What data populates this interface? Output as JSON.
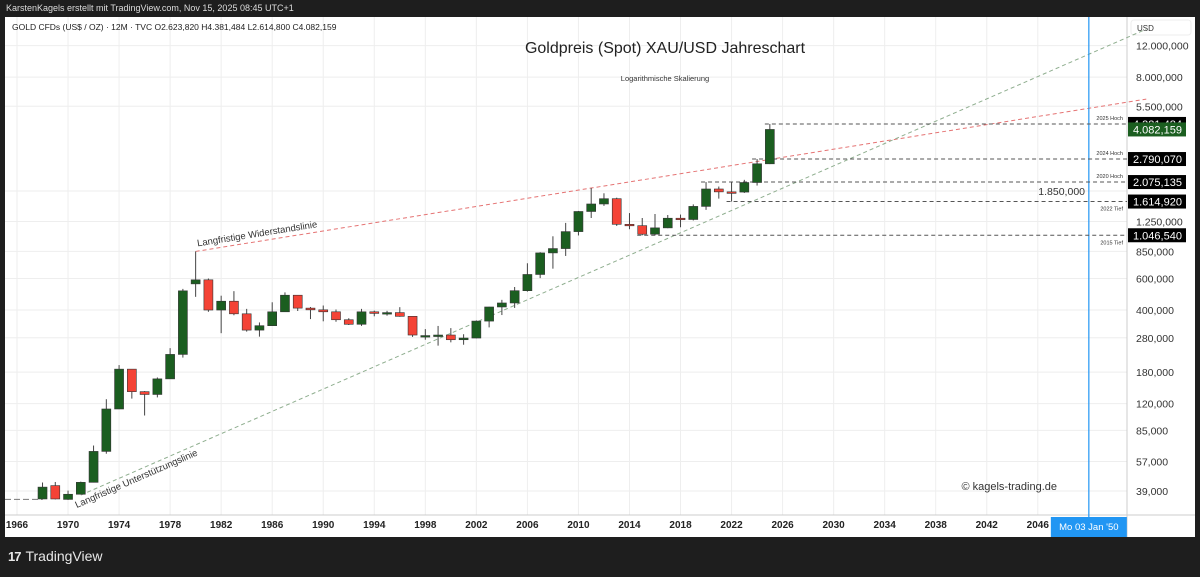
{
  "header": {
    "credit": "KarstenKagels erstellt mit TradingView.com, Nov 15, 2025 08:45 UTC+1"
  },
  "legend": {
    "symbol": "GOLD CFDs (US$ / OZ) · 12M · TVC",
    "open": "O2.623,820",
    "high": "H4.381,484",
    "low": "L2.614,800",
    "close": "C4.082,159"
  },
  "footer": {
    "brand": "TradingView"
  },
  "colors": {
    "up": "#1b5e20",
    "down": "#f44336",
    "resistance": "#e57373",
    "support": "#8fae8f",
    "crosshair": "#2196f3"
  },
  "chart_data": {
    "type": "candlestick",
    "title": "Goldpreis (Spot) XAU/USD Jahreschart",
    "subtitle": "Logarithmische Skalierung",
    "watermark": "© kagels-trading.de",
    "currency": "USD",
    "y_scale": "log",
    "ylim": [
      33,
      13500
    ],
    "xlim": [
      1965.7,
      2054.5
    ],
    "grid": true,
    "x_ticks": [
      "1966",
      "1970",
      "1974",
      "1978",
      "1982",
      "1986",
      "1990",
      "1994",
      "1998",
      "2002",
      "2006",
      "2010",
      "2014",
      "2018",
      "2022",
      "2026",
      "2030",
      "2034",
      "2038",
      "2042",
      "2046"
    ],
    "x_tick_values": [
      1966,
      1970,
      1974,
      1978,
      1982,
      1986,
      1990,
      1994,
      1998,
      2002,
      2006,
      2010,
      2014,
      2018,
      2022,
      2026,
      2030,
      2034,
      2038,
      2042,
      2046
    ],
    "y_ticks": [
      {
        "v": 12000,
        "label": "12.000,000"
      },
      {
        "v": 8000,
        "label": "8.000,000"
      },
      {
        "v": 5500,
        "label": "5.500,000"
      },
      {
        "v": 1850,
        "label": "1.850,000"
      },
      {
        "v": 1250,
        "label": "1.250,000"
      },
      {
        "v": 850,
        "label": "850,000"
      },
      {
        "v": 600,
        "label": "600,000"
      },
      {
        "v": 400,
        "label": "400,000"
      },
      {
        "v": 280,
        "label": "280,000"
      },
      {
        "v": 180,
        "label": "180,000"
      },
      {
        "v": 120,
        "label": "120,000"
      },
      {
        "v": 85,
        "label": "85,000"
      },
      {
        "v": 57,
        "label": "57,000"
      },
      {
        "v": 39,
        "label": "39,000"
      }
    ],
    "candles": [
      [
        1968,
        35.2,
        43.5,
        35.0,
        41.0
      ],
      [
        1969,
        41.8,
        43.8,
        35.0,
        35.2
      ],
      [
        1970,
        35.0,
        39.2,
        34.8,
        37.4
      ],
      [
        1971,
        37.4,
        44.0,
        37.3,
        43.6
      ],
      [
        1972,
        43.6,
        70.0,
        43.5,
        64.9
      ],
      [
        1973,
        64.9,
        127,
        63,
        112
      ],
      [
        1974,
        112,
        197,
        112,
        187
      ],
      [
        1975,
        187,
        186,
        128,
        140
      ],
      [
        1976,
        140,
        141,
        103,
        135
      ],
      [
        1977,
        135,
        168,
        130,
        165
      ],
      [
        1978,
        165,
        245,
        165,
        226
      ],
      [
        1979,
        226,
        525,
        217,
        512
      ],
      [
        1980,
        560,
        850,
        474,
        590
      ],
      [
        1981,
        590,
        600,
        391,
        400
      ],
      [
        1982,
        400,
        481,
        297,
        448
      ],
      [
        1983,
        448,
        510,
        374,
        381
      ],
      [
        1984,
        381,
        406,
        303,
        309
      ],
      [
        1985,
        309,
        341,
        284,
        327
      ],
      [
        1986,
        327,
        442,
        326,
        391
      ],
      [
        1987,
        391,
        502,
        390,
        484
      ],
      [
        1988,
        484,
        485,
        395,
        410
      ],
      [
        1989,
        410,
        416,
        356,
        401
      ],
      [
        1990,
        401,
        424,
        346,
        391
      ],
      [
        1991,
        391,
        403,
        344,
        353
      ],
      [
        1992,
        353,
        360,
        330,
        333
      ],
      [
        1993,
        333,
        406,
        326,
        391
      ],
      [
        1994,
        391,
        397,
        369,
        383
      ],
      [
        1995,
        383,
        396,
        372,
        387
      ],
      [
        1996,
        387,
        415,
        367,
        369
      ],
      [
        1997,
        369,
        368,
        283,
        290
      ],
      [
        1998,
        287,
        313,
        273,
        288
      ],
      [
        1999,
        288,
        326,
        253,
        290
      ],
      [
        2000,
        290,
        317,
        264,
        273
      ],
      [
        2001,
        273,
        293,
        256,
        279
      ],
      [
        2002,
        279,
        350,
        278,
        347
      ],
      [
        2003,
        347,
        417,
        320,
        416
      ],
      [
        2004,
        416,
        456,
        375,
        438
      ],
      [
        2005,
        438,
        538,
        411,
        513
      ],
      [
        2006,
        513,
        730,
        507,
        632
      ],
      [
        2007,
        632,
        842,
        603,
        834
      ],
      [
        2008,
        834,
        1033,
        681,
        882
      ],
      [
        2009,
        882,
        1227,
        802,
        1097
      ],
      [
        2010,
        1097,
        1431,
        1044,
        1421
      ],
      [
        2011,
        1421,
        1921,
        1307,
        1565
      ],
      [
        2012,
        1565,
        1796,
        1527,
        1675
      ],
      [
        2013,
        1675,
        1697,
        1180,
        1205
      ],
      [
        2014,
        1205,
        1392,
        1131,
        1184
      ],
      [
        2015,
        1184,
        1307,
        1046,
        1061
      ],
      [
        2016,
        1061,
        1375,
        1046,
        1151
      ],
      [
        2017,
        1151,
        1358,
        1146,
        1303
      ],
      [
        2018,
        1303,
        1366,
        1160,
        1282
      ],
      [
        2019,
        1282,
        1557,
        1266,
        1517
      ],
      [
        2020,
        1517,
        2075,
        1451,
        1898
      ],
      [
        2021,
        1898,
        1959,
        1677,
        1829
      ],
      [
        2022,
        1829,
        2070,
        1615,
        1824
      ],
      [
        2023,
        1824,
        2135,
        1804,
        2063
      ],
      [
        2024,
        2063,
        2790,
        1984,
        2625
      ],
      [
        2025,
        2623.82,
        4381.484,
        2614.8,
        4082.159
      ]
    ],
    "levels": [
      {
        "label": "2025 Hoch",
        "value": 4381.484,
        "price_label": "4.381,484",
        "from": 2025
      },
      {
        "label": "2024 Hoch",
        "value": 2790.07,
        "price_label": "2.790,070",
        "from": 2024
      },
      {
        "label": "2020 Hoch",
        "value": 2075.135,
        "price_label": "2.075,135",
        "from": 2020
      },
      {
        "label": "2022 Tief",
        "value": 1614.92,
        "price_label": "1.614,920",
        "from": 2022
      },
      {
        "label": "2015 Tief",
        "value": 1046.54,
        "price_label": "1.046,540",
        "from": 2015
      }
    ],
    "last_price": {
      "value": 4082.159,
      "label": "4.082,159"
    },
    "trendlines": [
      {
        "label": "Langfristige Widerstandslinie",
        "points": [
          [
            1980,
            850
          ],
          [
            2011,
            1921
          ]
        ],
        "extend_to": 2054.5,
        "color": "#e57373"
      },
      {
        "label": "Langfristige Unterstützungslinie",
        "points": [
          [
            1971,
            37
          ],
          [
            2018,
            1080
          ]
        ],
        "extend_to": 2054.5,
        "color": "#8fae8f"
      }
    ],
    "base_line": {
      "value": 35.0,
      "from": 1965.7,
      "to": 1968
    },
    "crosshair_date": "Mo 03 Jan '50",
    "crosshair_year": 2050.0
  }
}
